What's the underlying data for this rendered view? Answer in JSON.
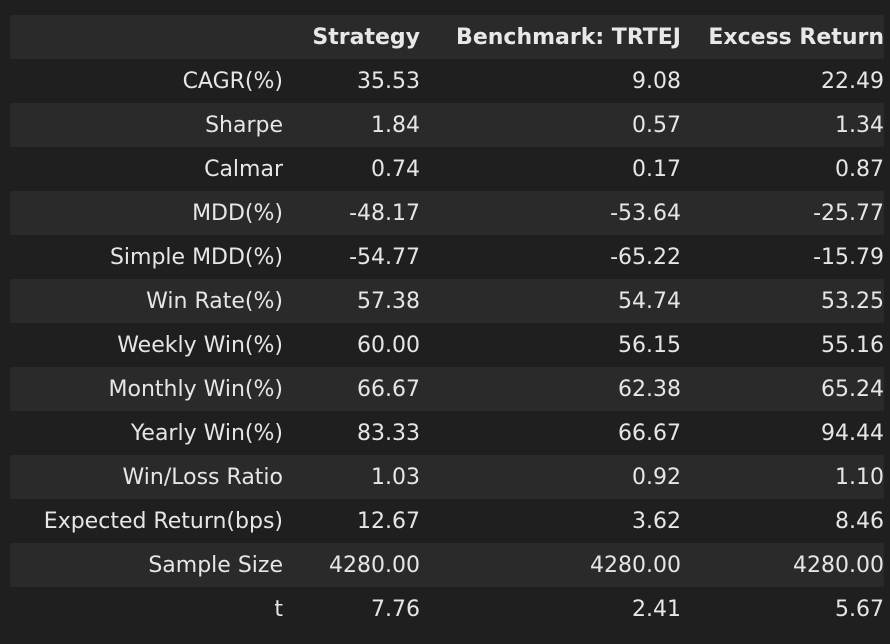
{
  "table": {
    "headers": [
      "",
      "Strategy",
      "Benchmark: TRTEJ",
      "Excess Return"
    ],
    "rows": [
      [
        "CAGR(%)",
        "35.53",
        "9.08",
        "22.49"
      ],
      [
        "Sharpe",
        "1.84",
        "0.57",
        "1.34"
      ],
      [
        "Calmar",
        "0.74",
        "0.17",
        "0.87"
      ],
      [
        "MDD(%)",
        "-48.17",
        "-53.64",
        "-25.77"
      ],
      [
        "Simple MDD(%)",
        "-54.77",
        "-65.22",
        "-15.79"
      ],
      [
        "Win Rate(%)",
        "57.38",
        "54.74",
        "53.25"
      ],
      [
        "Weekly Win(%)",
        "60.00",
        "56.15",
        "55.16"
      ],
      [
        "Monthly Win(%)",
        "66.67",
        "62.38",
        "65.24"
      ],
      [
        "Yearly Win(%)",
        "83.33",
        "66.67",
        "94.44"
      ],
      [
        "Win/Loss Ratio",
        "1.03",
        "0.92",
        "1.10"
      ],
      [
        "Expected Return(bps)",
        "12.67",
        "3.62",
        "8.46"
      ],
      [
        "Sample Size",
        "4280.00",
        "4280.00",
        "4280.00"
      ],
      [
        "t",
        "7.76",
        "2.41",
        "5.67"
      ]
    ]
  }
}
